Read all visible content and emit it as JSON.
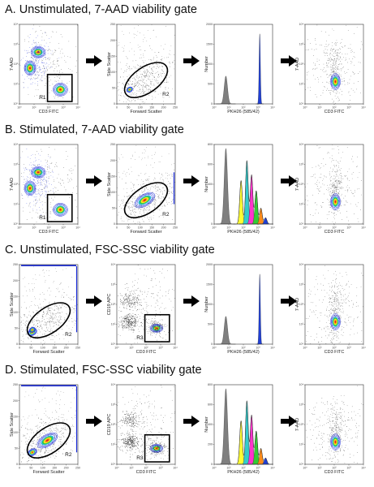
{
  "rows": [
    {
      "title": "A. Unstimulated, 7-AAD viability gate",
      "panels": [
        {
          "type": "dot",
          "xlabel": "CD3 FITC",
          "ylabel": "7-AAD",
          "xticks": [
            "10⁰",
            "10¹",
            "10²",
            "10³",
            "10⁴"
          ],
          "yticks": [
            "10⁰",
            "10¹",
            "10²",
            "10³",
            "10⁴"
          ],
          "region": "R1",
          "gate": "rect"
        },
        {
          "type": "scatter",
          "xlabel": "Forward Scatter",
          "ylabel": "Side Scatter",
          "xticks": [
            "0",
            "50",
            "100",
            "150",
            "200",
            "250"
          ],
          "yticks": [
            "0",
            "50",
            "100",
            "150",
            "200",
            "250"
          ],
          "region": "R2",
          "gate": "ellipse"
        },
        {
          "type": "hist",
          "xlabel": "PKH26 (585/42)",
          "ylabel": "Number",
          "xticks": [
            "10⁰",
            "10¹",
            "10²",
            "10³",
            "10⁴"
          ],
          "yticks": [
            "0",
            "500",
            "1000",
            "1500",
            "2000"
          ]
        },
        {
          "type": "dot",
          "xlabel": "CD3 FITC",
          "ylabel": "7-AAD",
          "xticks": [
            "10⁰",
            "10¹",
            "10²",
            "10³",
            "10⁴"
          ],
          "yticks": [
            "10⁰",
            "10¹",
            "10²",
            "10³",
            "10⁴"
          ],
          "region": "",
          "gate": "none"
        }
      ]
    },
    {
      "title": "B. Stimulated, 7-AAD viability gate",
      "panels": [
        {
          "type": "dot",
          "xlabel": "CD3 FITC",
          "ylabel": "7-AAD",
          "xticks": [
            "10⁰",
            "10¹",
            "10²",
            "10³",
            "10⁴"
          ],
          "yticks": [
            "10⁰",
            "10¹",
            "10²",
            "10³",
            "10⁴"
          ],
          "region": "R1",
          "gate": "rect"
        },
        {
          "type": "scatter",
          "xlabel": "Forward Scatter",
          "ylabel": "Side Scatter",
          "xticks": [
            "0",
            "50",
            "100",
            "150",
            "200",
            "250"
          ],
          "yticks": [
            "0",
            "50",
            "100",
            "150",
            "200",
            "250"
          ],
          "region": "R2",
          "gate": "ellipse"
        },
        {
          "type": "hist",
          "xlabel": "PKH26 (585/42)",
          "ylabel": "Number",
          "xticks": [
            "10⁰",
            "10¹",
            "10²",
            "10³",
            "10⁴"
          ],
          "yticks": [
            "0",
            "200",
            "400",
            "600",
            "800"
          ]
        },
        {
          "type": "dot",
          "xlabel": "CD3 FITC",
          "ylabel": "7-AAD",
          "xticks": [
            "10⁰",
            "10¹",
            "10²",
            "10³",
            "10⁴"
          ],
          "yticks": [
            "10⁰",
            "10¹",
            "10²",
            "10³",
            "10⁴"
          ],
          "region": "",
          "gate": "none"
        }
      ]
    },
    {
      "title": "C. Unstimulated, FSC-SSC viability gate",
      "panels": [
        {
          "type": "scatter",
          "xlabel": "Forward Scatter",
          "ylabel": "Side Scatter",
          "xticks": [
            "0",
            "50",
            "100",
            "150",
            "200",
            "250"
          ],
          "yticks": [
            "0",
            "50",
            "100",
            "150",
            "200",
            "250"
          ],
          "region": "R2",
          "gate": "ellipse"
        },
        {
          "type": "dot",
          "xlabel": "CD3 FITC",
          "ylabel": "CD19 APC",
          "xticks": [
            "10⁰",
            "10¹",
            "10²",
            "10³",
            "10⁴"
          ],
          "yticks": [
            "10⁰",
            "10¹",
            "10²",
            "10³",
            "10⁴"
          ],
          "region": "R3",
          "gate": "rect"
        },
        {
          "type": "hist",
          "xlabel": "PKH26 (585/42)",
          "ylabel": "Number",
          "xticks": [
            "10⁰",
            "10¹",
            "10²",
            "10³",
            "10⁴"
          ],
          "yticks": [
            "0",
            "500",
            "1000",
            "1500",
            "2000"
          ]
        },
        {
          "type": "dot",
          "xlabel": "CD3 FITC",
          "ylabel": "7-AAD",
          "xticks": [
            "10⁰",
            "10¹",
            "10²",
            "10³",
            "10⁴"
          ],
          "yticks": [
            "10⁰",
            "10¹",
            "10²",
            "10³",
            "10⁴"
          ],
          "region": "",
          "gate": "none"
        }
      ]
    },
    {
      "title": "D. Stimulated, FSC-SSC viability gate",
      "panels": [
        {
          "type": "scatter",
          "xlabel": "Forward Scatter",
          "ylabel": "Side Scatter",
          "xticks": [
            "0",
            "50",
            "100",
            "150",
            "200",
            "250"
          ],
          "yticks": [
            "0",
            "50",
            "100",
            "150",
            "200",
            "250"
          ],
          "region": "R2",
          "gate": "ellipse"
        },
        {
          "type": "dot",
          "xlabel": "CD3 FITC",
          "ylabel": "CD19 APC",
          "xticks": [
            "10⁰",
            "10¹",
            "10²",
            "10³",
            "10⁴"
          ],
          "yticks": [
            "10⁰",
            "10¹",
            "10²",
            "10³",
            "10⁴"
          ],
          "region": "R3",
          "gate": "rect"
        },
        {
          "type": "hist",
          "xlabel": "PKH26 (585/42)",
          "ylabel": "Number",
          "xticks": [
            "10⁰",
            "10¹",
            "10²",
            "10³",
            "10⁴"
          ],
          "yticks": [
            "0",
            "200",
            "400",
            "600",
            "800"
          ]
        },
        {
          "type": "dot",
          "xlabel": "CD3 FITC",
          "ylabel": "7-AAD",
          "xticks": [
            "10⁰",
            "10¹",
            "10²",
            "10³",
            "10⁴"
          ],
          "yticks": [
            "10⁰",
            "10¹",
            "10²",
            "10³",
            "10⁴"
          ],
          "region": "",
          "gate": "none"
        }
      ]
    }
  ],
  "colors": {
    "parent_peak": "#7f7f7f",
    "undivided_peak": "#1f3fd6",
    "divisions": [
      "#ffff33",
      "#33cccc",
      "#ff33cc",
      "#33cc33",
      "#ff8c1a",
      "#1f3fd6"
    ]
  }
}
